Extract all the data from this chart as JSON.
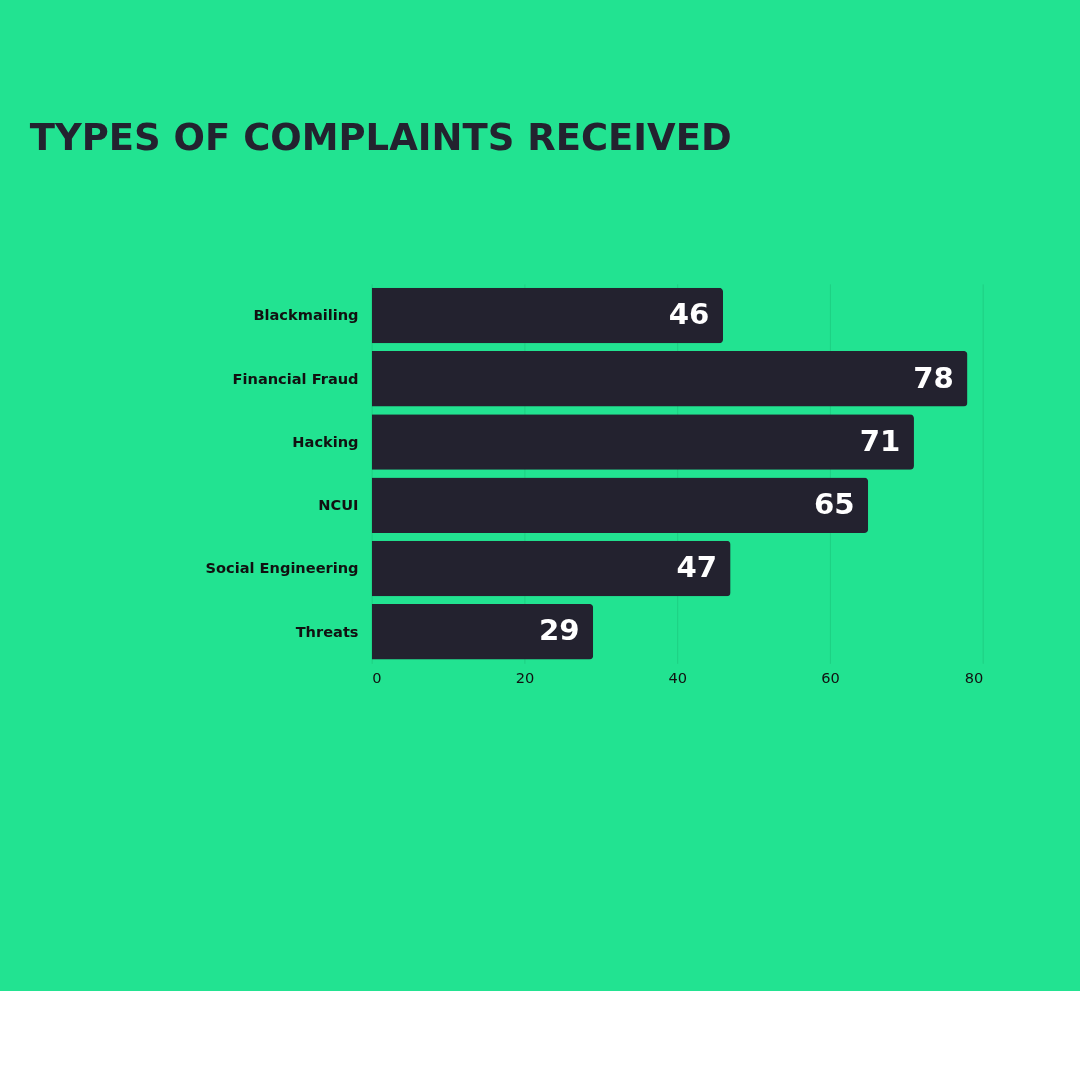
{
  "chart_data": {
    "type": "bar",
    "orientation": "horizontal",
    "title": "TYPES OF COMPLAINTS RECEIVED",
    "categories": [
      "Blackmailing",
      "Financial Fraud",
      "Hacking",
      "NCUI",
      "Social Engineering",
      "Threats"
    ],
    "values": [
      46,
      78,
      71,
      65,
      47,
      29
    ],
    "color": "#23222f",
    "xlim": [
      0,
      80
    ],
    "xticks": [
      0,
      20,
      40,
      60,
      80
    ],
    "grid": "x",
    "data_labels": true
  }
}
